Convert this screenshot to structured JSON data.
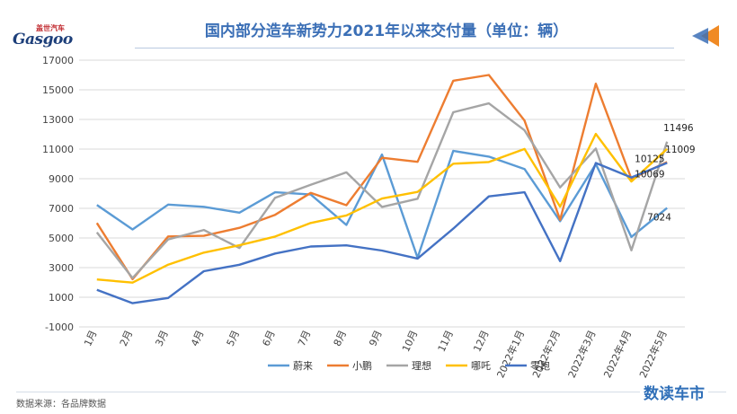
{
  "header": {
    "title": "国内部分造车新势力2021年以来交付量（单位：辆）",
    "logo_text_cn": "盖世汽车",
    "logo_text_en": "Gasgoo"
  },
  "footer": {
    "source": "数据来源：各品牌数据",
    "brand": "数读车市"
  },
  "chart_data": {
    "type": "line",
    "title": "国内部分造车新势力2021年以来交付量（单位：辆）",
    "categories": [
      "1月",
      "2月",
      "3月",
      "4月",
      "5月",
      "6月",
      "7月",
      "8月",
      "9月",
      "10月",
      "11月",
      "12月",
      "2022年1月",
      "2022年2月",
      "2022年3月",
      "2022年4月",
      "2022年5月"
    ],
    "ylim": [
      -1000,
      17000
    ],
    "yticks": [
      -1000,
      1000,
      3000,
      5000,
      7000,
      9000,
      11000,
      13000,
      15000,
      17000
    ],
    "grid": true,
    "legend_position": "bottom",
    "series": [
      {
        "name": "蔚来",
        "color": "#5b9bd5",
        "values": [
          7225,
          5578,
          7257,
          7102,
          6711,
          8083,
          7931,
          5880,
          10628,
          3667,
          10878,
          10489,
          9652,
          6131,
          9985,
          5074,
          7024
        ]
      },
      {
        "name": "小鹏",
        "color": "#ed7d31",
        "values": [
          6015,
          2223,
          5102,
          5147,
          5686,
          6565,
          8040,
          7214,
          10412,
          10138,
          15613,
          16000,
          12922,
          6225,
          15414,
          9002,
          10125
        ]
      },
      {
        "name": "理想",
        "color": "#a5a5a5",
        "values": [
          5379,
          2300,
          4900,
          5539,
          4323,
          7713,
          8589,
          9433,
          7094,
          7649,
          13485,
          14087,
          12268,
          8414,
          11034,
          4167,
          11496
        ]
      },
      {
        "name": "哪吒",
        "color": "#ffc000",
        "values": [
          2200,
          1990,
          3200,
          4010,
          4508,
          5100,
          6011,
          6524,
          7658,
          8107,
          10013,
          10127,
          11009,
          7117,
          12026,
          8813,
          11009
        ]
      },
      {
        "name": "零跑",
        "color": "#4472c4",
        "values": [
          1500,
          600,
          950,
          2760,
          3195,
          3952,
          4426,
          4502,
          4154,
          3612,
          5632,
          7807,
          8085,
          3435,
          10059,
          9087,
          10069
        ]
      }
    ],
    "data_labels": [
      {
        "series": "理想",
        "index": 16,
        "text": "11496"
      },
      {
        "series": "哪吒",
        "index": 16,
        "text": "11009"
      },
      {
        "series": "小鹏",
        "index": 16,
        "text": "10125"
      },
      {
        "series": "零跑",
        "index": 16,
        "text": "10069"
      },
      {
        "series": "蔚来",
        "index": 16,
        "text": "7024"
      }
    ]
  }
}
